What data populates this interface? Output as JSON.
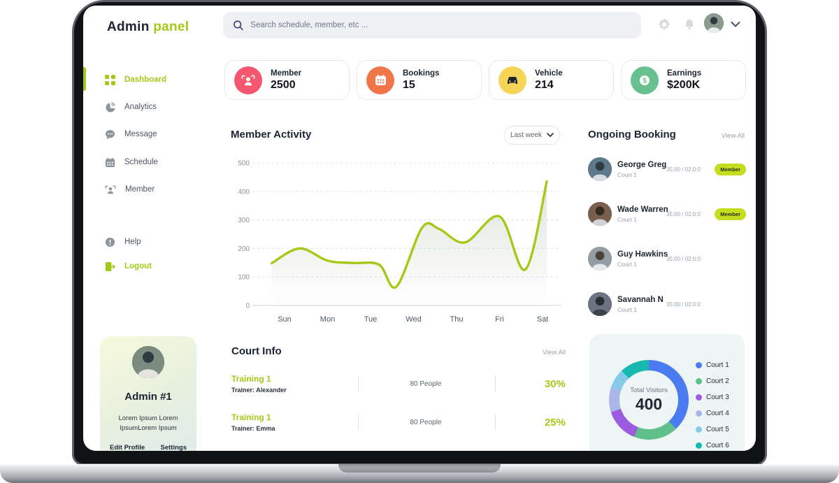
{
  "logo": {
    "part1": "Admin",
    "part2": "panel"
  },
  "header": {
    "search_placeholder": "Search schedule, member, etc ...",
    "icons": [
      "search",
      "gear",
      "bell",
      "avatar",
      "chevron-down"
    ]
  },
  "sidebar": {
    "items": [
      {
        "label": "Dashboard",
        "icon": "grid-icon",
        "active": true
      },
      {
        "label": "Analytics",
        "icon": "pie-icon",
        "active": false
      },
      {
        "label": "Message",
        "icon": "chat-icon",
        "active": false
      },
      {
        "label": "Schedule",
        "icon": "calendar-icon",
        "active": false
      },
      {
        "label": "Member",
        "icon": "people-icon",
        "active": false
      }
    ],
    "footer_items": [
      {
        "label": "Help",
        "icon": "info-icon"
      },
      {
        "label": "Logout",
        "icon": "logout-icon"
      }
    ]
  },
  "stats": [
    {
      "label": "Member",
      "value": "2500",
      "icon": "people-icon",
      "color": "#f4586f"
    },
    {
      "label": "Bookings",
      "value": "15",
      "icon": "calendar-icon",
      "color": "#f0764a"
    },
    {
      "label": "Vehicle",
      "value": "214",
      "icon": "car-icon",
      "color": "#f6d458"
    },
    {
      "label": "Earnings",
      "value": "$200K",
      "icon": "dollar-icon",
      "color": "#67c08e"
    }
  ],
  "activity": {
    "title": "Member Activity",
    "range_label": "Last week"
  },
  "ongoing": {
    "title": "Ongoing Booking",
    "view_all": "View All",
    "rows": [
      {
        "name": "George Greg",
        "court": "Court 1",
        "time": "35:00 / 02:0:0",
        "badge": "Member"
      },
      {
        "name": "Wade Warren",
        "court": "Court 1",
        "time": "35:00 / 02:0:0",
        "badge": "Member"
      },
      {
        "name": "Guy Hawkins",
        "court": "Court 1",
        "time": "35:00 / 02:0:0",
        "badge": ""
      },
      {
        "name": "Savannah N",
        "court": "Court 1",
        "time": "35:00 / 02:0:0",
        "badge": ""
      }
    ]
  },
  "court_info": {
    "title": "Court Info",
    "view_all": "View All",
    "rows": [
      {
        "name": "Training 1",
        "trainer": "Trainer: Alexander",
        "people": "80 People",
        "percent": "30%"
      },
      {
        "name": "Training 1",
        "trainer": "Trainer: Emma",
        "people": "80 People",
        "percent": "25%"
      }
    ]
  },
  "admin_card": {
    "name": "Admin #1",
    "line1": "Lorem Ipsum Lorem",
    "line2": "IpsumLorem Ipsum",
    "link1": "Edit Profile",
    "link2": "Settings"
  },
  "chart_data": [
    {
      "type": "line",
      "title": "Member Activity",
      "x_ticks": [
        "Sun",
        "Mon",
        "Tue",
        "Wed",
        "Thu",
        "Fri",
        "Sat"
      ],
      "y_ticks": [
        0,
        100,
        200,
        300,
        400,
        500
      ],
      "ylim": [
        0,
        500
      ],
      "grid": "dashed-horizontal",
      "legend_position": "none",
      "series": [
        {
          "name": "member-activity",
          "color": "#a5c918",
          "points": [
            [
              -0.3,
              148
            ],
            [
              0.35,
              200
            ],
            [
              1,
              157
            ],
            [
              1.6,
              149
            ],
            [
              2.2,
              143
            ],
            [
              2.6,
              66
            ],
            [
              3.2,
              273
            ],
            [
              3.6,
              268
            ],
            [
              4.2,
              221
            ],
            [
              5,
              312
            ],
            [
              5.6,
              126
            ],
            [
              6.1,
              435
            ]
          ]
        }
      ]
    },
    {
      "type": "pie",
      "title": "Total Visitors",
      "labels": [
        "Court 1",
        "Court 2",
        "Court 3",
        "Court 4",
        "Court 5",
        "Court 6"
      ],
      "values": [
        38,
        18,
        14,
        10,
        8,
        12
      ],
      "colors": [
        "#4a7bf0",
        "#5fc08b",
        "#9d5ce0",
        "#aab6ea",
        "#85cbe8",
        "#17b8b0"
      ],
      "center": {
        "label": "Total Visitors",
        "value": "400"
      },
      "legend_position": "right"
    }
  ]
}
